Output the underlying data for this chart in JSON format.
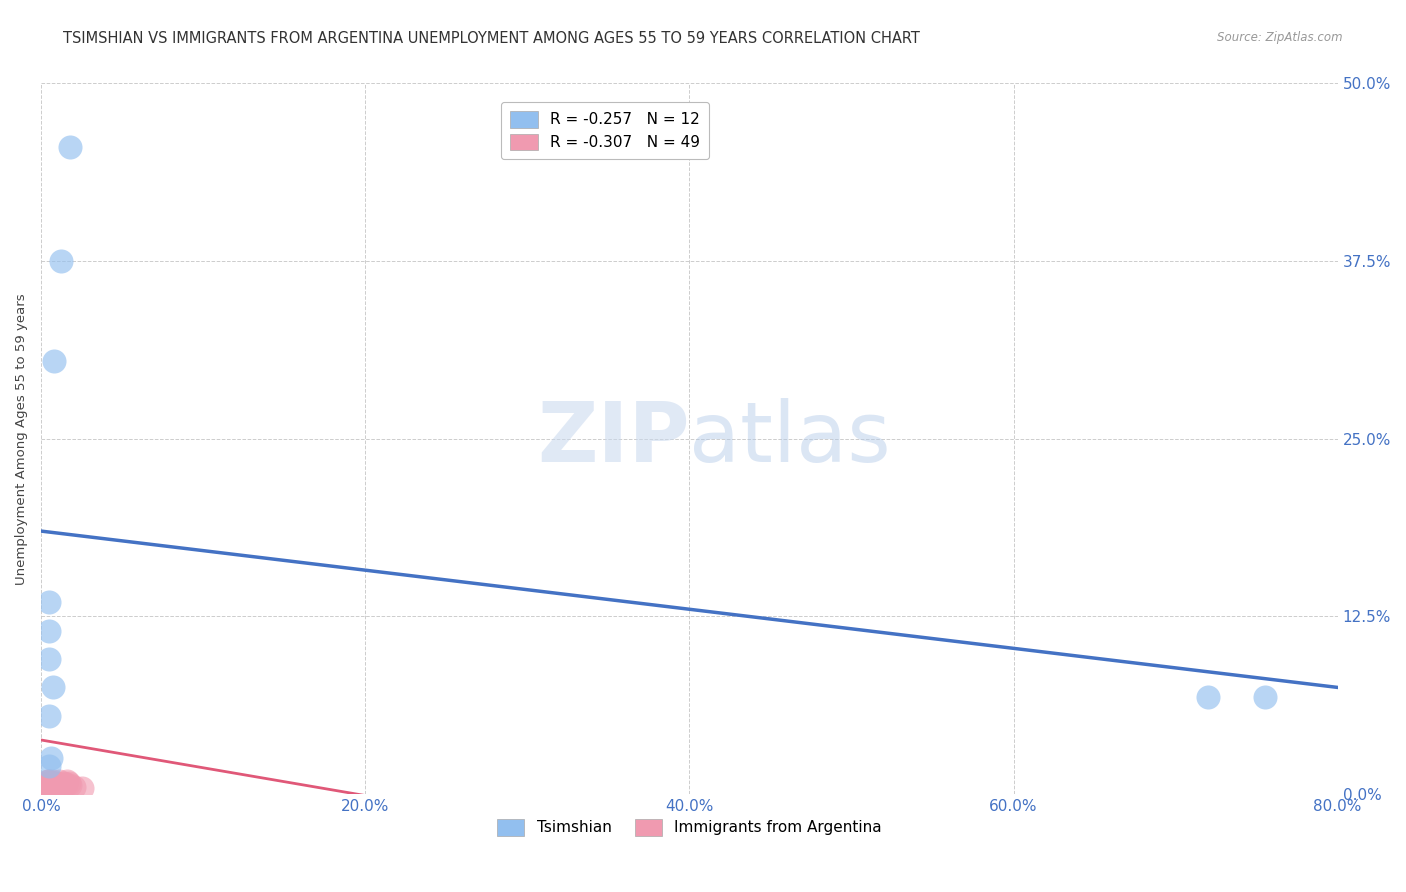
{
  "title": "TSIMSHIAN VS IMMIGRANTS FROM ARGENTINA UNEMPLOYMENT AMONG AGES 55 TO 59 YEARS CORRELATION CHART",
  "source": "Source: ZipAtlas.com",
  "ylabel": "Unemployment Among Ages 55 to 59 years",
  "xlim": [
    0,
    0.8
  ],
  "ylim": [
    0,
    0.5
  ],
  "xticks": [
    0.0,
    0.2,
    0.4,
    0.6,
    0.8
  ],
  "yticks": [
    0.0,
    0.125,
    0.25,
    0.375,
    0.5
  ],
  "xtick_labels": [
    "0.0%",
    "20.0%",
    "40.0%",
    "60.0%",
    "80.0%"
  ],
  "ytick_labels": [
    "0.0%",
    "12.5%",
    "25.0%",
    "37.5%",
    "50.0%"
  ],
  "background_color": "#ffffff",
  "watermark_text": "ZIPatlas",
  "legend_entries": [
    {
      "label": "R = -0.257   N = 12",
      "color": "#92bfef"
    },
    {
      "label": "R = -0.307   N = 49",
      "color": "#f09ab0"
    }
  ],
  "tsimshian_x": [
    0.018,
    0.012,
    0.008,
    0.005,
    0.005,
    0.005,
    0.007,
    0.005,
    0.006,
    0.005,
    0.72,
    0.755
  ],
  "tsimshian_y": [
    0.455,
    0.375,
    0.305,
    0.135,
    0.115,
    0.095,
    0.075,
    0.055,
    0.025,
    0.02,
    0.068,
    0.068
  ],
  "argentina_x": [
    0.002,
    0.002,
    0.003,
    0.003,
    0.003,
    0.003,
    0.004,
    0.004,
    0.004,
    0.004,
    0.004,
    0.004,
    0.004,
    0.004,
    0.004,
    0.005,
    0.005,
    0.005,
    0.005,
    0.005,
    0.005,
    0.005,
    0.005,
    0.005,
    0.005,
    0.006,
    0.006,
    0.006,
    0.007,
    0.007,
    0.007,
    0.007,
    0.008,
    0.008,
    0.009,
    0.009,
    0.01,
    0.01,
    0.011,
    0.011,
    0.012,
    0.013,
    0.014,
    0.015,
    0.016,
    0.017,
    0.018,
    0.02,
    0.025
  ],
  "argentina_y": [
    0.002,
    0.003,
    0.003,
    0.004,
    0.005,
    0.005,
    0.005,
    0.005,
    0.006,
    0.007,
    0.007,
    0.008,
    0.008,
    0.009,
    0.009,
    0.002,
    0.003,
    0.003,
    0.004,
    0.005,
    0.005,
    0.006,
    0.007,
    0.008,
    0.009,
    0.003,
    0.005,
    0.007,
    0.004,
    0.006,
    0.007,
    0.009,
    0.005,
    0.008,
    0.004,
    0.007,
    0.005,
    0.008,
    0.006,
    0.009,
    0.007,
    0.006,
    0.008,
    0.007,
    0.009,
    0.008,
    0.006,
    0.005,
    0.004
  ],
  "tsimshian_color": "#92bfef",
  "argentina_color": "#f09ab0",
  "tsimshian_trend_x": [
    0.0,
    0.8
  ],
  "tsimshian_trend_y": [
    0.185,
    0.075
  ],
  "argentina_trend_x": [
    0.0,
    0.22
  ],
  "argentina_trend_y": [
    0.038,
    -0.005
  ],
  "tsimshian_trend_color": "#4472c4",
  "argentina_trend_color": "#e05878",
  "tick_color": "#4472c4",
  "grid_color": "#c8c8c8",
  "title_color": "#333333",
  "title_fontsize": 10.5,
  "tick_fontsize": 11,
  "ylabel_fontsize": 9.5,
  "source_fontsize": 8.5
}
